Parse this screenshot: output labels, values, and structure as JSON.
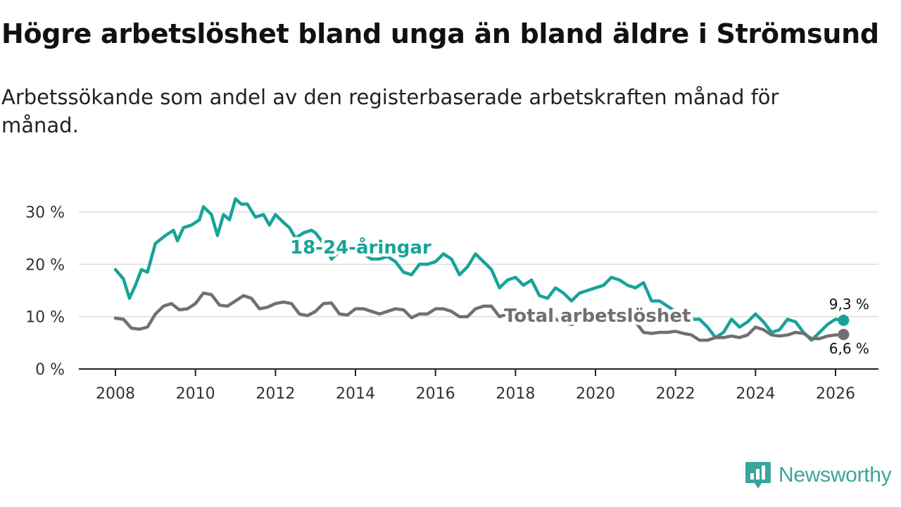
{
  "title": "Högre arbetslöshet bland unga än bland äldre i Strömsund",
  "subtitle": "Arbetssökande som andel av den registerbaserade arbetskraften månad för månad.",
  "brand": "Newsworthy",
  "colors": {
    "youth": "#17a398",
    "total": "#707070",
    "grid": "#dddddd",
    "axis": "#222222",
    "brand": "#3aa59a"
  },
  "chart_data": {
    "type": "line",
    "title": "Högre arbetslöshet bland unga än bland äldre i Strömsund",
    "xlabel": "",
    "ylabel": "",
    "xlim": [
      2007.2,
      2027.0
    ],
    "ylim": [
      0,
      30
    ],
    "y_ticks": [
      0,
      10,
      20,
      30
    ],
    "y_tick_labels": [
      "0 %",
      "10 %",
      "20 %",
      "30 %"
    ],
    "x_ticks": [
      2008,
      2010,
      2012,
      2014,
      2016,
      2018,
      2020,
      2022,
      2024,
      2026
    ],
    "x_tick_labels": [
      "2008",
      "2010",
      "2012",
      "2014",
      "2016",
      "2018",
      "2020",
      "2022",
      "2024",
      "2026"
    ],
    "grid": true,
    "series": [
      {
        "name": "18-24-åringar",
        "color": "#17a398",
        "end_label": "9,3 %",
        "points": [
          [
            2008.0,
            19.0
          ],
          [
            2008.2,
            17.2
          ],
          [
            2008.35,
            13.5
          ],
          [
            2008.5,
            16.0
          ],
          [
            2008.65,
            19.0
          ],
          [
            2008.8,
            18.5
          ],
          [
            2009.0,
            24.0
          ],
          [
            2009.25,
            25.5
          ],
          [
            2009.45,
            26.5
          ],
          [
            2009.55,
            24.5
          ],
          [
            2009.7,
            27.0
          ],
          [
            2009.9,
            27.5
          ],
          [
            2010.1,
            28.5
          ],
          [
            2010.2,
            31.0
          ],
          [
            2010.4,
            29.5
          ],
          [
            2010.55,
            25.5
          ],
          [
            2010.7,
            29.5
          ],
          [
            2010.85,
            28.5
          ],
          [
            2011.0,
            32.5
          ],
          [
            2011.15,
            31.5
          ],
          [
            2011.3,
            31.5
          ],
          [
            2011.5,
            29.0
          ],
          [
            2011.7,
            29.5
          ],
          [
            2011.85,
            27.5
          ],
          [
            2012.0,
            29.5
          ],
          [
            2012.2,
            28.0
          ],
          [
            2012.35,
            27.0
          ],
          [
            2012.5,
            25.0
          ],
          [
            2012.7,
            26.0
          ],
          [
            2012.9,
            26.5
          ],
          [
            2013.0,
            26.0
          ],
          [
            2013.2,
            24.0
          ],
          [
            2013.4,
            21.0
          ],
          [
            2013.6,
            22.5
          ],
          [
            2013.8,
            23.0
          ],
          [
            2014.0,
            22.5
          ],
          [
            2014.2,
            22.0
          ],
          [
            2014.4,
            21.0
          ],
          [
            2014.6,
            21.0
          ],
          [
            2014.8,
            21.5
          ],
          [
            2015.0,
            20.5
          ],
          [
            2015.2,
            18.5
          ],
          [
            2015.4,
            18.0
          ],
          [
            2015.6,
            20.0
          ],
          [
            2015.8,
            20.0
          ],
          [
            2016.0,
            20.5
          ],
          [
            2016.2,
            22.0
          ],
          [
            2016.4,
            21.0
          ],
          [
            2016.6,
            18.0
          ],
          [
            2016.8,
            19.5
          ],
          [
            2017.0,
            22.0
          ],
          [
            2017.2,
            20.5
          ],
          [
            2017.4,
            19.0
          ],
          [
            2017.6,
            15.5
          ],
          [
            2017.8,
            17.0
          ],
          [
            2018.0,
            17.5
          ],
          [
            2018.2,
            16.0
          ],
          [
            2018.4,
            17.0
          ],
          [
            2018.6,
            14.0
          ],
          [
            2018.8,
            13.5
          ],
          [
            2019.0,
            15.5
          ],
          [
            2019.2,
            14.5
          ],
          [
            2019.4,
            13.0
          ],
          [
            2019.6,
            14.5
          ],
          [
            2019.8,
            15.0
          ],
          [
            2020.0,
            15.5
          ],
          [
            2020.2,
            16.0
          ],
          [
            2020.4,
            17.5
          ],
          [
            2020.6,
            17.0
          ],
          [
            2020.8,
            16.0
          ],
          [
            2021.0,
            15.5
          ],
          [
            2021.2,
            16.5
          ],
          [
            2021.4,
            13.0
          ],
          [
            2021.6,
            13.0
          ],
          [
            2021.8,
            12.0
          ],
          [
            2022.0,
            11.0
          ],
          [
            2022.2,
            10.5
          ],
          [
            2022.4,
            9.5
          ],
          [
            2022.6,
            9.5
          ],
          [
            2022.8,
            8.0
          ],
          [
            2023.0,
            6.0
          ],
          [
            2023.2,
            7.0
          ],
          [
            2023.4,
            9.5
          ],
          [
            2023.6,
            8.0
          ],
          [
            2023.8,
            9.0
          ],
          [
            2024.0,
            10.5
          ],
          [
            2024.2,
            9.0
          ],
          [
            2024.4,
            7.0
          ],
          [
            2024.6,
            7.5
          ],
          [
            2024.8,
            9.5
          ],
          [
            2025.0,
            9.0
          ],
          [
            2025.2,
            7.0
          ],
          [
            2025.4,
            5.5
          ],
          [
            2025.6,
            7.0
          ],
          [
            2025.8,
            8.5
          ],
          [
            2026.0,
            9.5
          ],
          [
            2026.2,
            9.3
          ]
        ]
      },
      {
        "name": "Total arbetslöshet",
        "color": "#707070",
        "end_label": "6,6 %",
        "points": [
          [
            2008.0,
            9.7
          ],
          [
            2008.2,
            9.5
          ],
          [
            2008.4,
            7.8
          ],
          [
            2008.6,
            7.6
          ],
          [
            2008.8,
            8.0
          ],
          [
            2009.0,
            10.5
          ],
          [
            2009.2,
            12.0
          ],
          [
            2009.4,
            12.5
          ],
          [
            2009.6,
            11.3
          ],
          [
            2009.8,
            11.5
          ],
          [
            2010.0,
            12.5
          ],
          [
            2010.2,
            14.5
          ],
          [
            2010.4,
            14.2
          ],
          [
            2010.6,
            12.2
          ],
          [
            2010.8,
            12.0
          ],
          [
            2011.0,
            13.0
          ],
          [
            2011.2,
            14.0
          ],
          [
            2011.4,
            13.5
          ],
          [
            2011.6,
            11.5
          ],
          [
            2011.8,
            11.8
          ],
          [
            2012.0,
            12.5
          ],
          [
            2012.2,
            12.8
          ],
          [
            2012.4,
            12.5
          ],
          [
            2012.6,
            10.5
          ],
          [
            2012.8,
            10.2
          ],
          [
            2013.0,
            11.0
          ],
          [
            2013.2,
            12.5
          ],
          [
            2013.4,
            12.6
          ],
          [
            2013.6,
            10.5
          ],
          [
            2013.8,
            10.3
          ],
          [
            2014.0,
            11.5
          ],
          [
            2014.2,
            11.5
          ],
          [
            2014.4,
            11.0
          ],
          [
            2014.6,
            10.5
          ],
          [
            2014.8,
            11.0
          ],
          [
            2015.0,
            11.5
          ],
          [
            2015.2,
            11.3
          ],
          [
            2015.4,
            9.8
          ],
          [
            2015.6,
            10.5
          ],
          [
            2015.8,
            10.5
          ],
          [
            2016.0,
            11.5
          ],
          [
            2016.2,
            11.5
          ],
          [
            2016.4,
            11.0
          ],
          [
            2016.6,
            10.0
          ],
          [
            2016.8,
            10.0
          ],
          [
            2017.0,
            11.5
          ],
          [
            2017.2,
            12.0
          ],
          [
            2017.4,
            12.0
          ],
          [
            2017.6,
            10.0
          ],
          [
            2017.8,
            10.5
          ],
          [
            2018.0,
            10.5
          ],
          [
            2018.2,
            10.5
          ],
          [
            2018.4,
            10.0
          ],
          [
            2018.6,
            9.5
          ],
          [
            2018.8,
            9.0
          ],
          [
            2019.0,
            9.5
          ],
          [
            2019.2,
            9.0
          ],
          [
            2019.4,
            8.5
          ],
          [
            2019.6,
            9.0
          ],
          [
            2019.8,
            9.5
          ],
          [
            2020.0,
            10.0
          ],
          [
            2020.2,
            9.5
          ],
          [
            2020.4,
            10.0
          ],
          [
            2020.6,
            9.5
          ],
          [
            2020.8,
            9.5
          ],
          [
            2021.0,
            9.0
          ],
          [
            2021.2,
            7.0
          ],
          [
            2021.4,
            6.8
          ],
          [
            2021.6,
            7.0
          ],
          [
            2021.8,
            7.0
          ],
          [
            2022.0,
            7.2
          ],
          [
            2022.2,
            6.8
          ],
          [
            2022.4,
            6.5
          ],
          [
            2022.6,
            5.5
          ],
          [
            2022.8,
            5.5
          ],
          [
            2023.0,
            6.0
          ],
          [
            2023.2,
            6.0
          ],
          [
            2023.4,
            6.3
          ],
          [
            2023.6,
            6.0
          ],
          [
            2023.8,
            6.5
          ],
          [
            2024.0,
            8.0
          ],
          [
            2024.2,
            7.5
          ],
          [
            2024.4,
            6.5
          ],
          [
            2024.6,
            6.3
          ],
          [
            2024.8,
            6.5
          ],
          [
            2025.0,
            7.0
          ],
          [
            2025.2,
            6.8
          ],
          [
            2025.4,
            5.8
          ],
          [
            2025.6,
            5.8
          ],
          [
            2025.8,
            6.3
          ],
          [
            2026.0,
            6.5
          ],
          [
            2026.2,
            6.6
          ]
        ]
      }
    ]
  }
}
